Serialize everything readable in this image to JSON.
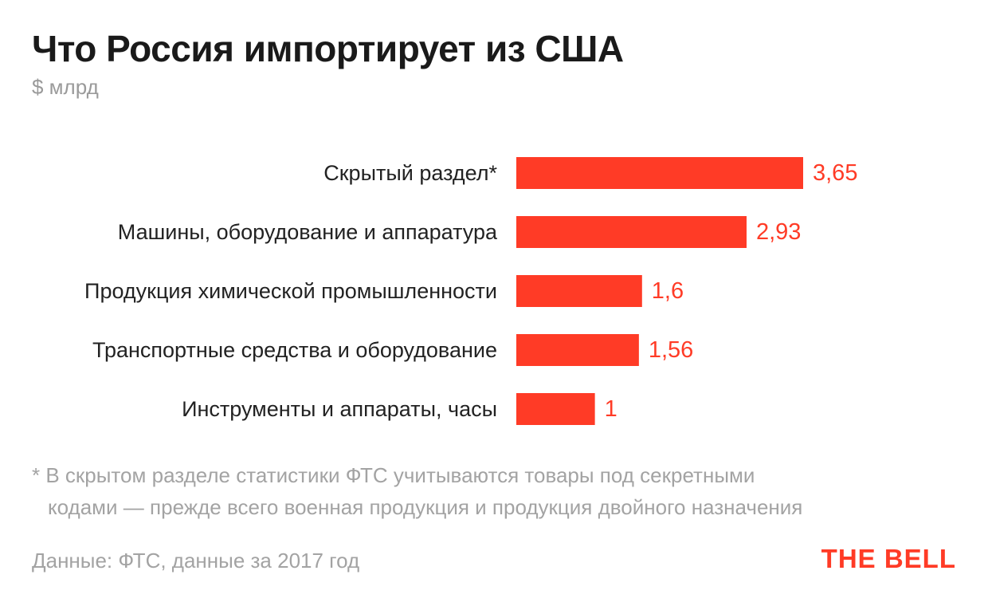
{
  "header": {
    "title": "Что Россия импортирует из США",
    "subtitle": "$ млрд"
  },
  "chart_data": {
    "type": "bar",
    "orientation": "horizontal",
    "categories": [
      "Скрытый раздел*",
      "Машины, оборудование и аппаратура",
      "Продукция химической промышленности",
      "Транспортные средства и оборудование",
      "Инструменты и аппараты, часы"
    ],
    "values": [
      3.65,
      2.93,
      1.6,
      1.56,
      1
    ],
    "value_labels": [
      "3,65",
      "2,93",
      "1,6",
      "1,56",
      "1"
    ],
    "title": "Что Россия импортирует из США",
    "subtitle": "$ млрд",
    "xlim": [
      0,
      3.65
    ],
    "grid": false,
    "legend": "none"
  },
  "colors": {
    "bar": "#ff3b26",
    "value_text": "#ff3b26",
    "logo": "#ff3b26"
  },
  "footnote": {
    "line1": "* В скрытом разделе статистики ФТС учитываются товары под секретными",
    "line2": "кодами — прежде всего военная продукция и продукция двойного назначения"
  },
  "source": "Данные: ФТС, данные за 2017 год",
  "logo": "THE BELL"
}
